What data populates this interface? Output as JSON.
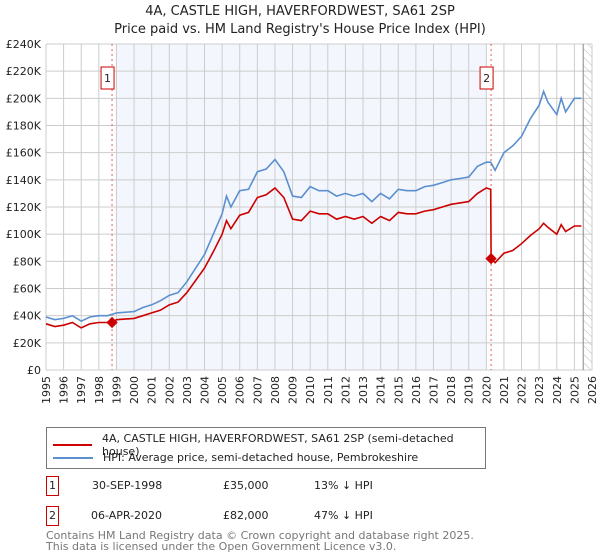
{
  "chart_data": {
    "type": "line",
    "title": "4A, CASTLE HIGH, HAVERFORDWEST, SA61 2SP",
    "subtitle": "Price paid vs. HM Land Registry's House Price Index (HPI)",
    "xlim": [
      1995,
      2026
    ],
    "ylim": [
      0,
      240000
    ],
    "y_ticks": [
      0,
      20000,
      40000,
      60000,
      80000,
      100000,
      120000,
      140000,
      160000,
      180000,
      200000,
      220000,
      240000
    ],
    "y_tick_labels": [
      "£0",
      "£20K",
      "£40K",
      "£60K",
      "£80K",
      "£100K",
      "£120K",
      "£140K",
      "£160K",
      "£180K",
      "£200K",
      "£220K",
      "£240K"
    ],
    "x_ticks": [
      1995,
      1996,
      1997,
      1998,
      1999,
      2000,
      2001,
      2002,
      2003,
      2004,
      2005,
      2006,
      2007,
      2008,
      2009,
      2010,
      2011,
      2012,
      2013,
      2014,
      2015,
      2016,
      2017,
      2018,
      2019,
      2020,
      2021,
      2022,
      2023,
      2024,
      2025,
      2026
    ],
    "grid": true,
    "shaded_period": [
      1999.0,
      2020.0
    ],
    "forecast_hatch_from": 2025.5,
    "series": [
      {
        "name": "4A, CASTLE HIGH, HAVERFORDWEST, SA61 2SP (semi-detached house)",
        "color": "#cc0000",
        "x": [
          1995,
          1995.5,
          1996,
          1996.5,
          1997,
          1997.5,
          1998,
          1998.5,
          1998.75,
          1999,
          2000,
          2000.5,
          2001,
          2001.5,
          2002,
          2002.5,
          2003,
          2003.5,
          2004,
          2004.5,
          2005,
          2005.25,
          2005.5,
          2006,
          2006.5,
          2007,
          2007.5,
          2008,
          2008.5,
          2009,
          2009.5,
          2010,
          2010.5,
          2011,
          2011.5,
          2012,
          2012.5,
          2013,
          2013.5,
          2014,
          2014.5,
          2015,
          2015.5,
          2016,
          2016.5,
          2017,
          2017.5,
          2018,
          2018.5,
          2019,
          2019.5,
          2020,
          2020.25,
          2020.27,
          2020.5,
          2021,
          2021.5,
          2022,
          2022.5,
          2023,
          2023.25,
          2023.5,
          2024,
          2024.25,
          2024.5,
          2025,
          2025.4
        ],
        "y": [
          34000,
          32000,
          33000,
          35000,
          31000,
          34000,
          35000,
          35000,
          35000,
          37000,
          38000,
          40000,
          42000,
          44000,
          48000,
          50000,
          57000,
          66000,
          75000,
          87000,
          100000,
          110000,
          104000,
          114000,
          116000,
          127000,
          129000,
          134000,
          127000,
          111000,
          110000,
          117000,
          115000,
          115000,
          111000,
          113000,
          111000,
          113000,
          108000,
          113000,
          110000,
          116000,
          115000,
          115000,
          117000,
          118000,
          120000,
          122000,
          123000,
          124000,
          130000,
          134000,
          133000,
          82000,
          79000,
          86000,
          88000,
          93000,
          99000,
          104000,
          108000,
          105000,
          100000,
          107000,
          102000,
          106000,
          106000
        ]
      },
      {
        "name": "HPI: Average price, semi-detached house, Pembrokeshire",
        "color": "#5b8fd0",
        "x": [
          1995,
          1995.5,
          1996,
          1996.5,
          1997,
          1997.5,
          1998,
          1998.5,
          1999,
          2000,
          2000.5,
          2001,
          2001.5,
          2002,
          2002.5,
          2003,
          2003.5,
          2004,
          2004.5,
          2005,
          2005.25,
          2005.5,
          2006,
          2006.5,
          2007,
          2007.5,
          2008,
          2008.5,
          2009,
          2009.5,
          2010,
          2010.5,
          2011,
          2011.5,
          2012,
          2012.5,
          2013,
          2013.5,
          2014,
          2014.5,
          2015,
          2015.5,
          2016,
          2016.5,
          2017,
          2017.5,
          2018,
          2018.5,
          2019,
          2019.5,
          2020,
          2020.25,
          2020.5,
          2021,
          2021.5,
          2022,
          2022.5,
          2023,
          2023.25,
          2023.5,
          2024,
          2024.25,
          2024.5,
          2025,
          2025.4
        ],
        "y": [
          39000,
          37000,
          38000,
          40000,
          36000,
          39000,
          40000,
          40000,
          42000,
          43000,
          46000,
          48000,
          51000,
          55000,
          57000,
          65000,
          75000,
          85000,
          100000,
          115000,
          128000,
          120000,
          132000,
          133000,
          146000,
          148000,
          155000,
          146000,
          128000,
          127000,
          135000,
          132000,
          132000,
          128000,
          130000,
          128000,
          130000,
          124000,
          130000,
          126000,
          133000,
          132000,
          132000,
          135000,
          136000,
          138000,
          140000,
          141000,
          142000,
          150000,
          153000,
          153000,
          147000,
          160000,
          165000,
          172000,
          185000,
          195000,
          205000,
          197000,
          188000,
          200000,
          190000,
          200000,
          200000
        ]
      }
    ],
    "annotations": [
      {
        "label": "1",
        "x": 1998.75,
        "y": 35000
      },
      {
        "label": "2",
        "x": 2020.27,
        "y": 82000
      }
    ],
    "legend": "below"
  },
  "legend_items": [
    "4A, CASTLE HIGH, HAVERFORDWEST, SA61 2SP (semi-detached house)",
    "HPI: Average price, semi-detached house, Pembrokeshire"
  ],
  "transactions": [
    {
      "num": "1",
      "date": "30-SEP-1998",
      "price": "£35,000",
      "hpi": "13% ↓ HPI"
    },
    {
      "num": "2",
      "date": "06-APR-2020",
      "price": "£82,000",
      "hpi": "47% ↓ HPI"
    }
  ],
  "footer": [
    "Contains HM Land Registry data © Crown copyright and database right 2025.",
    "This data is licensed under the Open Government Licence v3.0."
  ]
}
